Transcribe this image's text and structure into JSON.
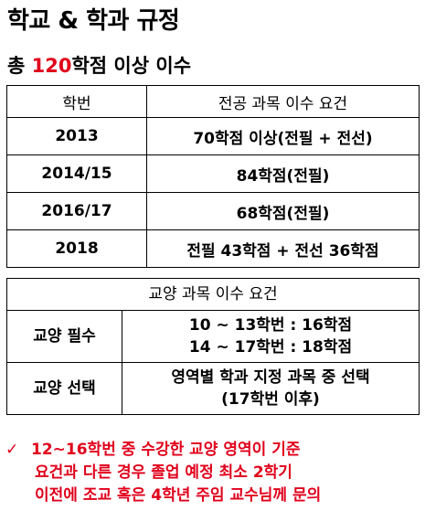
{
  "title": "학교 & 학과 규정",
  "subtitle": {
    "prefix": "총 ",
    "credits": "120",
    "suffix": "학점 이상 이수"
  },
  "major_table": {
    "headers": [
      "학번",
      "전공 과목 이수 요건"
    ],
    "rows": [
      {
        "year": "2013",
        "requirement": "70학점 이상(전필 + 전선)"
      },
      {
        "year": "2014/15",
        "requirement": "84학점(전필)"
      },
      {
        "year": "2016/17",
        "requirement": "68학점(전필)"
      },
      {
        "year": "2018",
        "requirement": "전필 43학점 + 전선 36학점"
      }
    ]
  },
  "liberal_table": {
    "header": "교양 과목 이수 요건",
    "rows": [
      {
        "label": "교양 필수",
        "lines": [
          "10 ~ 13학번 : 16학점",
          "14 ~ 17학번 : 18학점"
        ]
      },
      {
        "label": "교양 선택",
        "lines": [
          "영역별 학과 지정 과목 중 선택",
          "(17학번 이후)"
        ]
      }
    ]
  },
  "note": {
    "icon": "check-icon",
    "lines": [
      "12~16학번 중 수강한 교양 영역이 기준",
      "요건과 다른 경우 졸업 예정 최소 2학기",
      "이전에 조교 혹은 4학년 주임 교수님께 문의"
    ]
  },
  "colors": {
    "accent": "#e0001b",
    "text": "#000000",
    "border": "#000000"
  }
}
